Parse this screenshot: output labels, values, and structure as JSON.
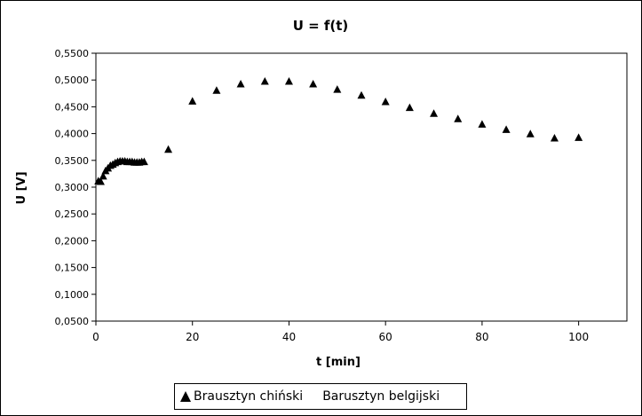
{
  "chart_data": {
    "type": "scatter",
    "title": "U = f(t)",
    "xlabel": "t [min]",
    "ylabel": "U [V]",
    "xlim": [
      0,
      110
    ],
    "ylim": [
      0.05,
      0.55
    ],
    "x_ticks": [
      0,
      20,
      40,
      60,
      80,
      100
    ],
    "x_tick_labels": [
      "0",
      "20",
      "40",
      "60",
      "80",
      "100"
    ],
    "y_ticks": [
      0.05,
      0.1,
      0.15,
      0.2,
      0.25,
      0.3,
      0.35,
      0.4,
      0.45,
      0.5,
      0.55
    ],
    "y_tick_labels": [
      "0,0500",
      "0,1000",
      "0,1500",
      "0,2000",
      "0,2500",
      "0,3000",
      "0,3500",
      "0,4000",
      "0,4500",
      "0,5000",
      "0,5500"
    ],
    "grid": false,
    "legend_position": "bottom",
    "series": [
      {
        "name": "Brausztyn chiński",
        "marker": "triangle",
        "color": "#000000",
        "x": [
          0.5,
          1,
          1.5,
          2,
          2.5,
          3,
          3.5,
          4,
          4.5,
          5,
          5.5,
          6,
          6.5,
          7,
          7.5,
          8,
          8.5,
          9,
          9.5,
          10,
          15,
          20,
          25,
          30,
          35,
          40,
          45,
          50,
          55,
          60,
          65,
          70,
          75,
          80,
          85,
          90,
          95,
          100
        ],
        "y": [
          0.311,
          0.31,
          0.32,
          0.33,
          0.335,
          0.34,
          0.342,
          0.345,
          0.347,
          0.348,
          0.348,
          0.348,
          0.347,
          0.347,
          0.347,
          0.346,
          0.346,
          0.346,
          0.347,
          0.347,
          0.37,
          0.46,
          0.48,
          0.492,
          0.497,
          0.497,
          0.492,
          0.482,
          0.471,
          0.459,
          0.448,
          0.437,
          0.427,
          0.417,
          0.407,
          0.399,
          0.391,
          0.392
        ]
      },
      {
        "name": "Barusztyn belgijski",
        "marker": "none",
        "color": "#000000",
        "x": [],
        "y": []
      }
    ]
  }
}
